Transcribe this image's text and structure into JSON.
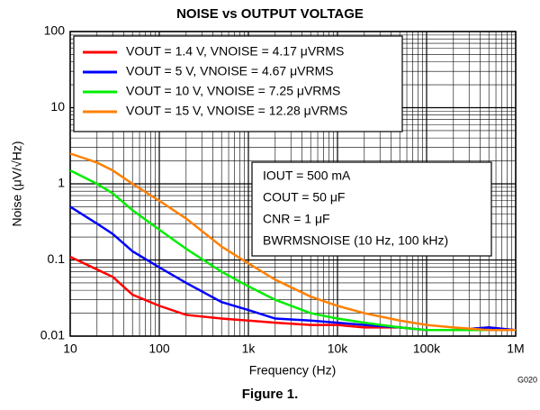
{
  "chart_data": {
    "type": "line",
    "title": "NOISE vs OUTPUT VOLTAGE",
    "xlabel": "Frequency (Hz)",
    "ylabel": "Noise (μV/√Hz)",
    "xscale": "log",
    "yscale": "log",
    "grid": true,
    "minor_grid": true,
    "legend": "upper left",
    "x": [
      10,
      20,
      30,
      50,
      100,
      200,
      500,
      1000,
      2000,
      5000,
      10000,
      20000,
      50000,
      100000,
      200000,
      500000,
      1000000
    ],
    "series": [
      {
        "name": "VOUT = 1.4 V, VNOISE = 4.17 μVRMS",
        "color": "#ff0000",
        "values": [
          0.11,
          0.075,
          0.06,
          0.035,
          0.025,
          0.019,
          0.017,
          0.016,
          0.015,
          0.014,
          0.014,
          0.013,
          0.013,
          0.012,
          0.012,
          0.013,
          0.012
        ]
      },
      {
        "name": "VOUT = 5 V, VNOISE = 4.67 μVRMS",
        "color": "#0000ff",
        "values": [
          0.5,
          0.3,
          0.22,
          0.13,
          0.08,
          0.05,
          0.028,
          0.022,
          0.017,
          0.016,
          0.015,
          0.014,
          0.013,
          0.012,
          0.012,
          0.013,
          0.012
        ]
      },
      {
        "name": "VOUT = 10 V, VNOISE = 7.25 μVRMS",
        "color": "#00ee00",
        "values": [
          1.5,
          1.0,
          0.75,
          0.45,
          0.25,
          0.14,
          0.07,
          0.045,
          0.03,
          0.02,
          0.017,
          0.015,
          0.013,
          0.012,
          0.012,
          0.012,
          0.012
        ]
      },
      {
        "name": "VOUT = 15 V, VNOISE = 12.28 μVRMS",
        "color": "#ff8000",
        "values": [
          2.5,
          1.9,
          1.5,
          1.0,
          0.6,
          0.35,
          0.15,
          0.09,
          0.055,
          0.033,
          0.025,
          0.02,
          0.016,
          0.014,
          0.013,
          0.012,
          0.012
        ]
      }
    ],
    "xlim": [
      10,
      1000000
    ],
    "ylim": [
      0.01,
      100
    ],
    "xticks": [
      10,
      100,
      {
        "value": 1000,
        "label": "1k"
      },
      {
        "value": 10000,
        "label": "10k"
      },
      {
        "value": 100000,
        "label": "100k"
      },
      {
        "value": 1000000,
        "label": "1M"
      }
    ],
    "yticks": [
      0.01,
      0.1,
      1,
      10,
      100
    ],
    "annotations": [
      "IOUT = 500 mA",
      "COUT = 50 μF",
      "CNR = 1 μF",
      "BWRMSNOISE (10 Hz, 100 kHz)"
    ],
    "code": "G020",
    "figure_label": "Figure 1."
  }
}
